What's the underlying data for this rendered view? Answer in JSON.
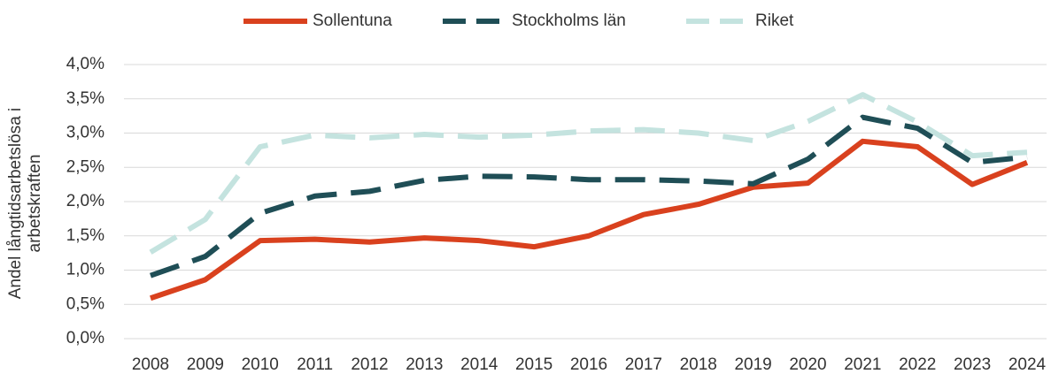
{
  "chart_data": {
    "type": "line",
    "ylabel": [
      "Andel långtidsarbetslösa i",
      "arbetskraften"
    ],
    "categories": [
      "2008",
      "2009",
      "2010",
      "2011",
      "2012",
      "2013",
      "2014",
      "2015",
      "2016",
      "2017",
      "2018",
      "2019",
      "2020",
      "2021",
      "2022",
      "2023",
      "2024"
    ],
    "series": [
      {
        "name": "Sollentuna",
        "color": "#d9411e",
        "dash": "none",
        "values": [
          0.59,
          0.86,
          1.43,
          1.45,
          1.41,
          1.47,
          1.43,
          1.34,
          1.5,
          1.81,
          1.96,
          2.21,
          2.27,
          2.88,
          2.8,
          2.25,
          2.57
        ]
      },
      {
        "name": "Stockholms län",
        "color": "#1f4e56",
        "dash": "34 16",
        "values": [
          0.92,
          1.2,
          1.83,
          2.08,
          2.15,
          2.31,
          2.37,
          2.36,
          2.32,
          2.32,
          2.3,
          2.26,
          2.62,
          3.23,
          3.07,
          2.57,
          2.65
        ]
      },
      {
        "name": "Riket",
        "color": "#c4e3df",
        "dash": "34 16",
        "values": [
          1.26,
          1.74,
          2.8,
          2.97,
          2.93,
          2.98,
          2.94,
          2.97,
          3.03,
          3.05,
          3.0,
          2.89,
          3.17,
          3.56,
          3.16,
          2.67,
          2.72
        ]
      }
    ],
    "ylim": [
      0,
      4
    ],
    "yticks": [
      {
        "value": 0,
        "label": "0,0%"
      },
      {
        "value": 0.5,
        "label": "0,5%"
      },
      {
        "value": 1,
        "label": "1,0%"
      },
      {
        "value": 1.5,
        "label": "1,5%"
      },
      {
        "value": 2,
        "label": "2,0%"
      },
      {
        "value": 2.5,
        "label": "2,5%"
      },
      {
        "value": 3,
        "label": "3,0%"
      },
      {
        "value": 3.5,
        "label": "3,5%"
      },
      {
        "value": 4,
        "label": "4,0%"
      }
    ],
    "grid": true,
    "legend": "top"
  }
}
